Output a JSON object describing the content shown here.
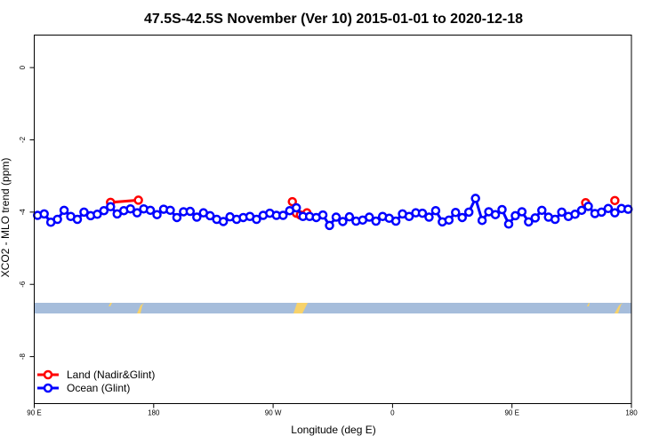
{
  "chart_data": {
    "type": "line",
    "title": "47.5S-42.5S November (Ver 10)   2015-01-01 to 2020-12-18",
    "xlabel": "Longitude (deg E)",
    "ylabel": "XCO2 - MLO trend (ppm)",
    "xlim": [
      90,
      540
    ],
    "ylim": [
      -9.3,
      0.9
    ],
    "x_ticks": [
      {
        "value": 90,
        "label": "90 E"
      },
      {
        "value": 180,
        "label": "180"
      },
      {
        "value": 270,
        "label": "90 W"
      },
      {
        "value": 360,
        "label": "0"
      },
      {
        "value": 450,
        "label": "90 E"
      },
      {
        "value": 540,
        "label": "180"
      }
    ],
    "y_ticks": [
      0,
      -2,
      -4,
      -6,
      -8
    ],
    "grid": false,
    "legend_position": "bottom-left",
    "series": [
      {
        "name": "Land (Nadir&Glint)",
        "color": "#ff0000",
        "segments": [
          [
            [
              147.5,
              -3.73
            ],
            [
              168.5,
              -3.67
            ]
          ],
          [
            [
              284.5,
              -3.71
            ],
            [
              287.5,
              -4.03
            ],
            [
              290.5,
              -4.08
            ],
            [
              295.5,
              -4.02
            ]
          ],
          [
            [
              505.5,
              -3.74
            ]
          ],
          [
            [
              527.5,
              -3.68
            ]
          ]
        ]
      },
      {
        "name": "Ocean (Glint)",
        "color": "#0000ff",
        "points": [
          [
            92.5,
            -4.09
          ],
          [
            97.5,
            -4.05
          ],
          [
            102.5,
            -4.28
          ],
          [
            107.5,
            -4.2
          ],
          [
            112.5,
            -3.95
          ],
          [
            117.5,
            -4.12
          ],
          [
            122.5,
            -4.2
          ],
          [
            127.5,
            -4.0
          ],
          [
            132.5,
            -4.1
          ],
          [
            137.5,
            -4.06
          ],
          [
            142.5,
            -3.96
          ],
          [
            147.5,
            -3.85
          ],
          [
            152.5,
            -4.05
          ],
          [
            157.5,
            -3.96
          ],
          [
            162.5,
            -3.91
          ],
          [
            167.5,
            -4.02
          ],
          [
            172.5,
            -3.91
          ],
          [
            177.5,
            -3.95
          ],
          [
            182.5,
            -4.07
          ],
          [
            187.5,
            -3.92
          ],
          [
            192.5,
            -3.95
          ],
          [
            197.5,
            -4.15
          ],
          [
            202.5,
            -3.99
          ],
          [
            207.5,
            -3.98
          ],
          [
            212.5,
            -4.14
          ],
          [
            217.5,
            -4.02
          ],
          [
            222.5,
            -4.1
          ],
          [
            227.5,
            -4.2
          ],
          [
            232.5,
            -4.26
          ],
          [
            237.5,
            -4.13
          ],
          [
            242.5,
            -4.2
          ],
          [
            247.5,
            -4.15
          ],
          [
            252.5,
            -4.12
          ],
          [
            257.5,
            -4.2
          ],
          [
            262.5,
            -4.09
          ],
          [
            267.5,
            -4.03
          ],
          [
            272.5,
            -4.09
          ],
          [
            277.5,
            -4.09
          ],
          [
            282.5,
            -3.96
          ],
          [
            287.5,
            -3.88
          ],
          [
            292.5,
            -4.12
          ],
          [
            297.5,
            -4.12
          ],
          [
            302.5,
            -4.15
          ],
          [
            307.5,
            -4.08
          ],
          [
            312.5,
            -4.37
          ],
          [
            317.5,
            -4.14
          ],
          [
            322.5,
            -4.26
          ],
          [
            327.5,
            -4.13
          ],
          [
            332.5,
            -4.25
          ],
          [
            337.5,
            -4.22
          ],
          [
            342.5,
            -4.14
          ],
          [
            347.5,
            -4.25
          ],
          [
            352.5,
            -4.12
          ],
          [
            357.5,
            -4.17
          ],
          [
            362.5,
            -4.25
          ],
          [
            367.5,
            -4.05
          ],
          [
            372.5,
            -4.12
          ],
          [
            377.5,
            -4.02
          ],
          [
            382.5,
            -4.03
          ],
          [
            387.5,
            -4.14
          ],
          [
            392.5,
            -3.96
          ],
          [
            397.5,
            -4.27
          ],
          [
            402.5,
            -4.22
          ],
          [
            407.5,
            -4.01
          ],
          [
            412.5,
            -4.15
          ],
          [
            417.5,
            -4.0
          ],
          [
            422.5,
            -3.62
          ],
          [
            427.5,
            -4.23
          ],
          [
            432.5,
            -3.99
          ],
          [
            437.5,
            -4.07
          ],
          [
            442.5,
            -3.93
          ],
          [
            447.5,
            -4.33
          ],
          [
            452.5,
            -4.1
          ],
          [
            457.5,
            -3.99
          ],
          [
            462.5,
            -4.27
          ],
          [
            467.5,
            -4.16
          ],
          [
            472.5,
            -3.95
          ],
          [
            477.5,
            -4.14
          ],
          [
            482.5,
            -4.2
          ],
          [
            487.5,
            -4.0
          ],
          [
            492.5,
            -4.12
          ],
          [
            497.5,
            -4.06
          ],
          [
            502.5,
            -3.95
          ],
          [
            507.5,
            -3.84
          ],
          [
            512.5,
            -4.04
          ],
          [
            517.5,
            -4.0
          ],
          [
            522.5,
            -3.9
          ],
          [
            527.5,
            -4.02
          ],
          [
            532.5,
            -3.9
          ],
          [
            537.5,
            -3.92
          ]
        ]
      }
    ],
    "colors": {
      "land_band": "#a6bddb",
      "land_marks": "#f7d26a"
    }
  }
}
